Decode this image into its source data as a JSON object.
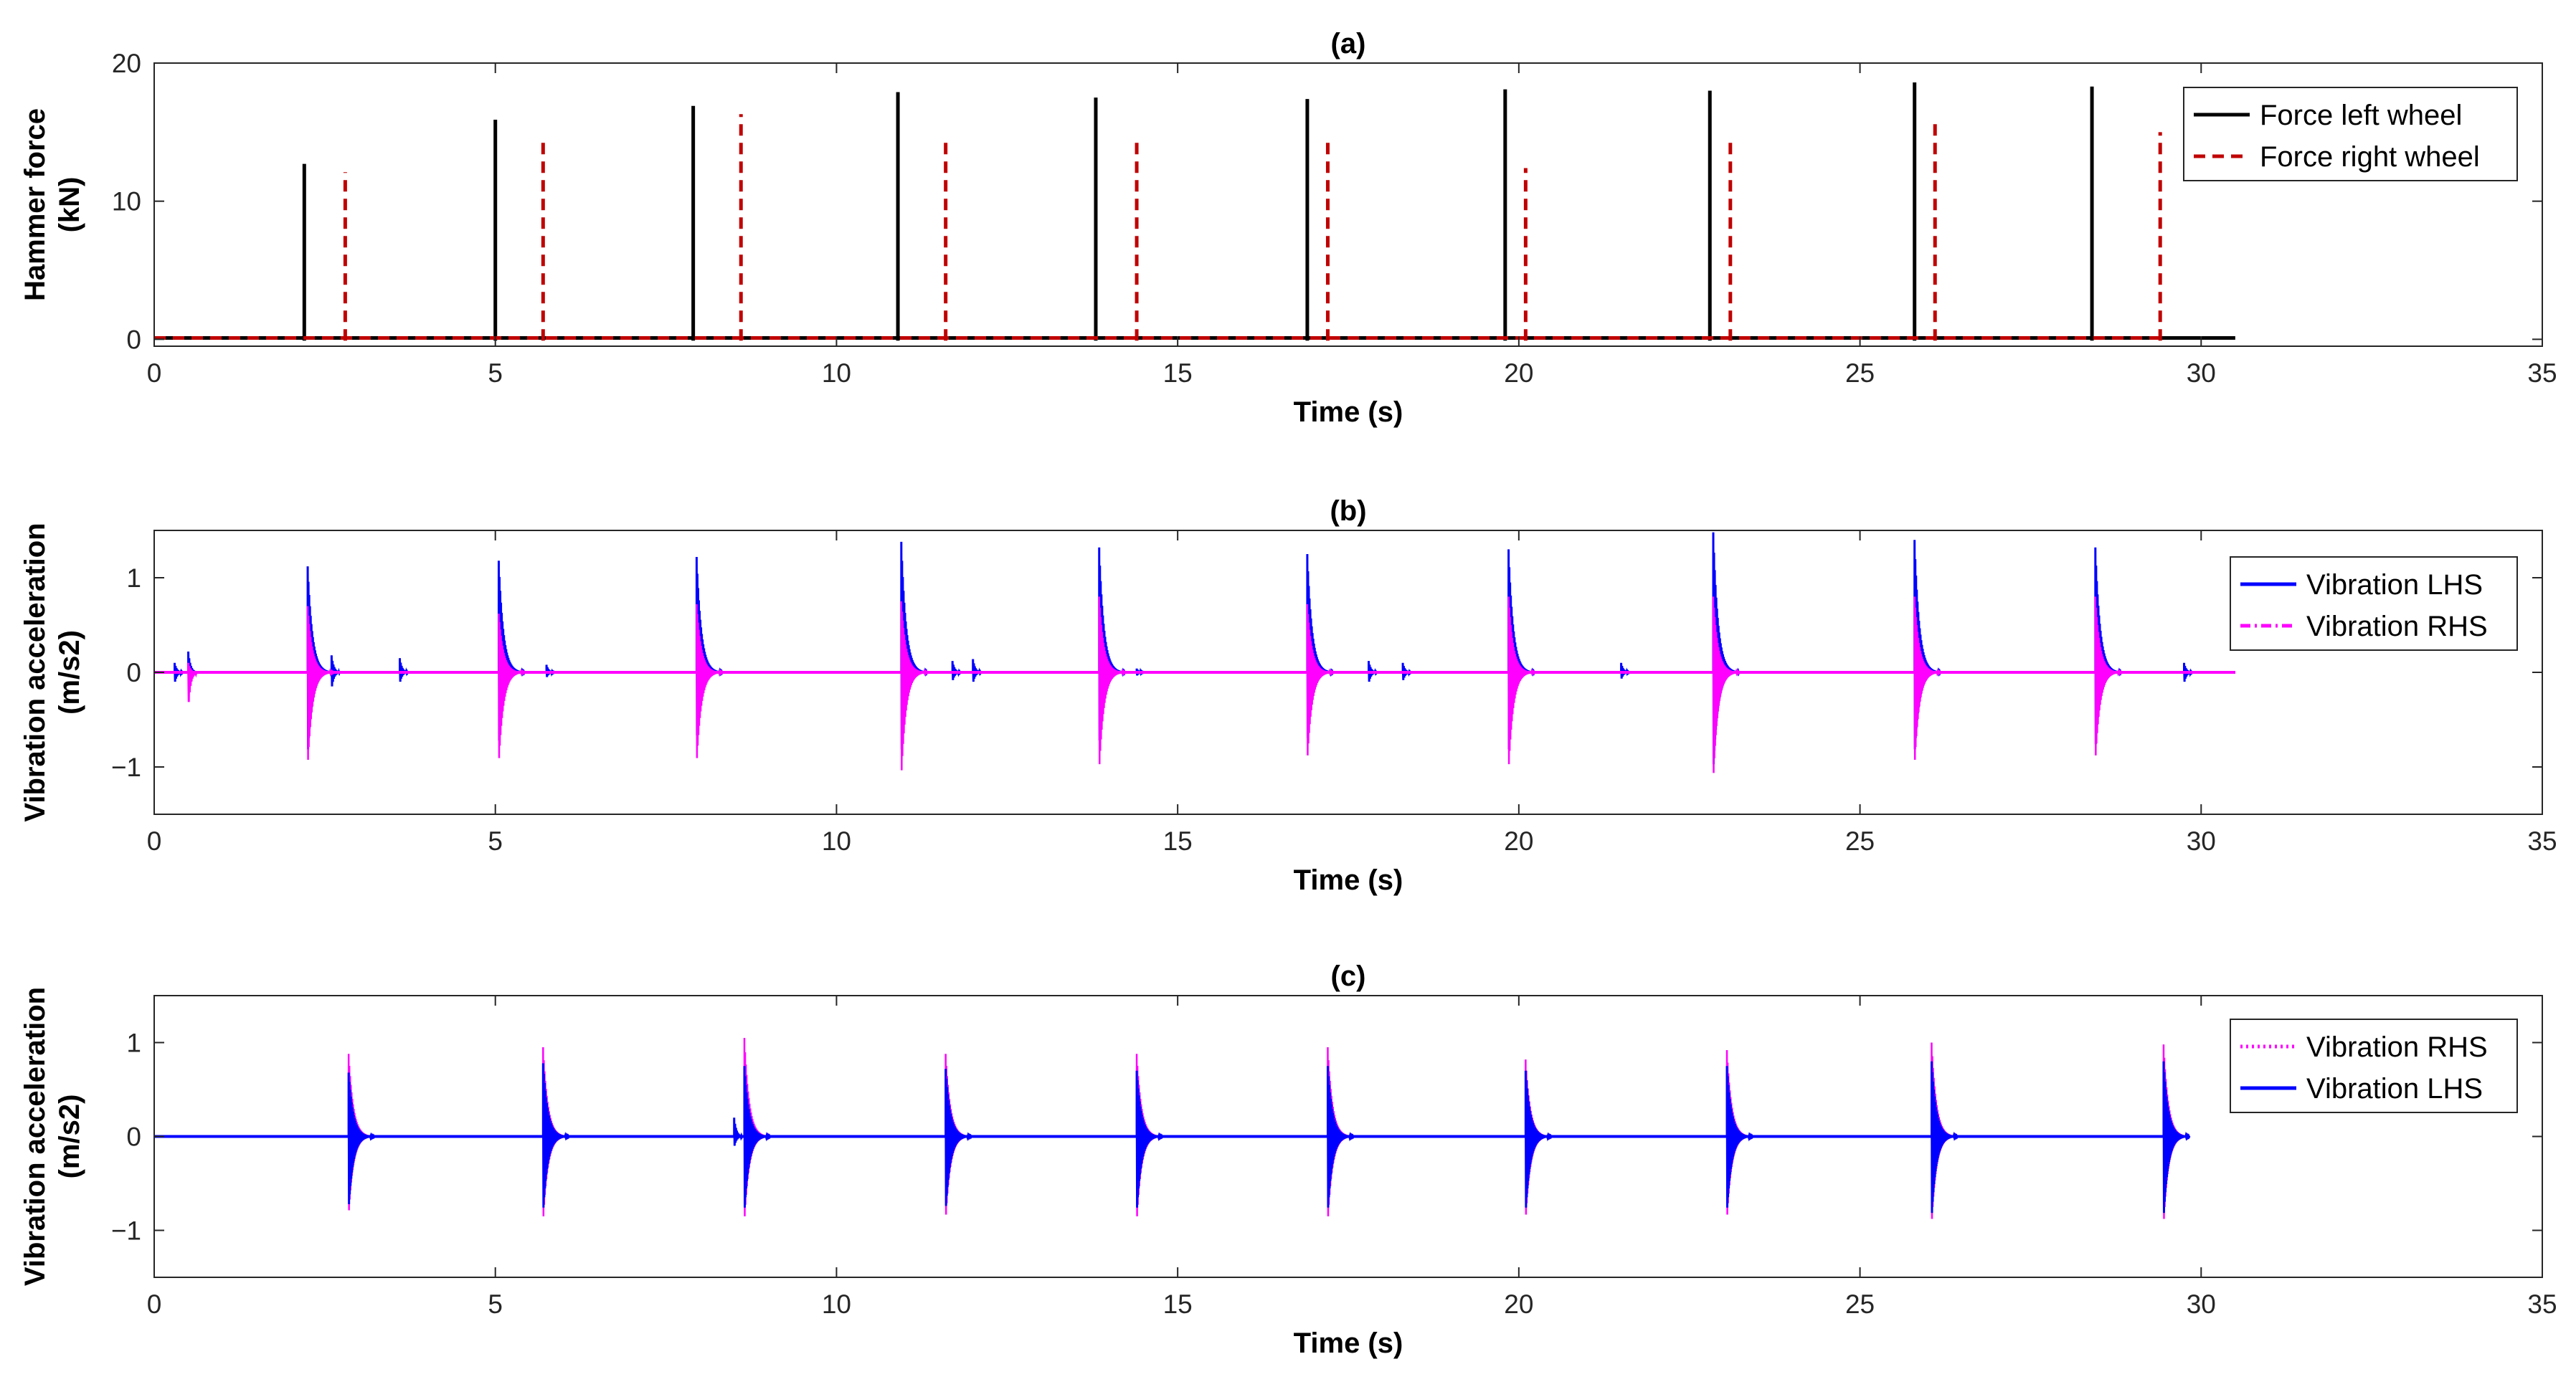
{
  "chart_data": [
    {
      "type": "line",
      "title": "(a)",
      "xlabel": "Time (s)",
      "ylabel": [
        "Hammer force",
        "(kN)"
      ],
      "xlim": [
        0,
        35
      ],
      "ylim": [
        -0.5,
        20
      ],
      "xticks": [
        0,
        5,
        10,
        15,
        20,
        25,
        30,
        35
      ],
      "yticks": [
        0,
        10,
        20
      ],
      "xtick_labels": [
        "0",
        "5",
        "10",
        "15",
        "20",
        "25",
        "30",
        "35"
      ],
      "ytick_labels": [
        "0",
        "10",
        "20"
      ],
      "legend_position": "top-right",
      "series": [
        {
          "name": "Force left wheel",
          "color": "#000000",
          "style": "solid",
          "baseline": 0.1,
          "x_end": 30.5,
          "spikes": [
            [
              2.2,
              12.7
            ],
            [
              5.0,
              15.9
            ],
            [
              7.9,
              16.9
            ],
            [
              10.9,
              17.9
            ],
            [
              13.8,
              17.5
            ],
            [
              16.9,
              17.4
            ],
            [
              19.8,
              18.1
            ],
            [
              22.8,
              18.0
            ],
            [
              25.8,
              18.6
            ],
            [
              28.4,
              18.3
            ]
          ]
        },
        {
          "name": "Force right wheel",
          "color": "#c00000",
          "style": "dashed",
          "baseline": 0.1,
          "x_end": 29.4,
          "spikes": [
            [
              2.8,
              12.1
            ],
            [
              5.7,
              14.6
            ],
            [
              8.6,
              16.3
            ],
            [
              11.6,
              14.7
            ],
            [
              14.4,
              14.6
            ],
            [
              17.2,
              14.4
            ],
            [
              20.1,
              12.4
            ],
            [
              23.1,
              14.5
            ],
            [
              26.1,
              16.0
            ],
            [
              29.4,
              15.0
            ]
          ]
        }
      ]
    },
    {
      "type": "line",
      "title": "(b)",
      "xlabel": "Time (s)",
      "ylabel": [
        "Vibration acceleration",
        "(m/s2)"
      ],
      "xlim": [
        0,
        35
      ],
      "ylim": [
        -1.5,
        1.5
      ],
      "xticks": [
        0,
        5,
        10,
        15,
        20,
        25,
        30,
        35
      ],
      "yticks": [
        -1,
        0,
        1
      ],
      "xtick_labels": [
        "0",
        "5",
        "10",
        "15",
        "20",
        "25",
        "30",
        "35"
      ],
      "ytick_labels": [
        "−1",
        "0",
        "1"
      ],
      "legend_position": "top-right",
      "series": [
        {
          "name": "Vibration LHS",
          "color": "#0000ff",
          "style": "solid",
          "x_end": 30.5,
          "bursts": [
            [
              2.25,
              1.12,
              -0.88
            ],
            [
              5.05,
              1.18,
              -0.78
            ],
            [
              7.95,
              1.22,
              -0.72
            ],
            [
              10.95,
              1.38,
              -0.88
            ],
            [
              13.85,
              1.32,
              -0.78
            ],
            [
              16.9,
              1.25,
              -0.75
            ],
            [
              19.85,
              1.3,
              -0.88
            ],
            [
              22.85,
              1.48,
              -1.05
            ],
            [
              25.8,
              1.4,
              -0.88
            ],
            [
              28.45,
              1.32,
              -0.82
            ]
          ],
          "small_bursts": [
            [
              0.3,
              0.1,
              -0.12
            ],
            [
              0.5,
              0.22,
              -0.22
            ],
            [
              2.6,
              0.18,
              -0.18
            ],
            [
              3.6,
              0.15,
              -0.12
            ],
            [
              5.75,
              0.08,
              -0.06
            ],
            [
              11.7,
              0.12,
              -0.1
            ],
            [
              12.0,
              0.14,
              -0.12
            ],
            [
              14.4,
              0.04,
              -0.04
            ],
            [
              17.8,
              0.12,
              -0.12
            ],
            [
              18.3,
              0.1,
              -0.1
            ],
            [
              21.5,
              0.1,
              -0.08
            ],
            [
              29.75,
              0.1,
              -0.12
            ]
          ]
        },
        {
          "name": "Vibration RHS",
          "color": "#ff00ff",
          "style": "dashdot",
          "x_end": 30.5,
          "bursts": [
            [
              2.25,
              0.7,
              -1.0
            ],
            [
              5.05,
              0.62,
              -0.98
            ],
            [
              7.95,
              0.72,
              -0.98
            ],
            [
              10.95,
              0.75,
              -1.12
            ],
            [
              13.85,
              0.8,
              -1.05
            ],
            [
              16.9,
              0.72,
              -0.95
            ],
            [
              19.85,
              0.8,
              -1.05
            ],
            [
              22.85,
              0.8,
              -1.15
            ],
            [
              25.8,
              0.8,
              -1.0
            ],
            [
              28.45,
              0.8,
              -0.95
            ]
          ],
          "small_bursts": [
            [
              0.5,
              0.1,
              -0.38
            ]
          ]
        }
      ]
    },
    {
      "type": "line",
      "title": "(c)",
      "xlabel": "Time (s)",
      "ylabel": [
        "Vibration acceleration",
        "(m/s2)"
      ],
      "xlim": [
        0,
        35
      ],
      "ylim": [
        -1.5,
        1.5
      ],
      "xticks": [
        0,
        5,
        10,
        15,
        20,
        25,
        30,
        35
      ],
      "yticks": [
        -1,
        0,
        1
      ],
      "xtick_labels": [
        "0",
        "5",
        "10",
        "15",
        "20",
        "25",
        "30",
        "35"
      ],
      "ytick_labels": [
        "−1",
        "0",
        "1"
      ],
      "legend_position": "top-right",
      "series": [
        {
          "name": "Vibration RHS",
          "color": "#ff00ff",
          "style": "dotted",
          "x_end": 29.45,
          "bursts": [
            [
              2.85,
              0.88,
              -0.85
            ],
            [
              5.7,
              0.95,
              -0.92
            ],
            [
              8.65,
              1.05,
              -0.92
            ],
            [
              11.6,
              0.88,
              -0.9
            ],
            [
              14.4,
              0.88,
              -0.92
            ],
            [
              17.2,
              0.95,
              -0.92
            ],
            [
              20.1,
              0.82,
              -0.9
            ],
            [
              23.05,
              0.92,
              -0.9
            ],
            [
              26.05,
              1.0,
              -0.95
            ],
            [
              29.45,
              0.98,
              -0.95
            ]
          ],
          "small_bursts": []
        },
        {
          "name": "Vibration LHS",
          "color": "#0000ff",
          "style": "solid",
          "x_end": 29.45,
          "bursts": [
            [
              2.85,
              0.68,
              -0.78
            ],
            [
              5.7,
              0.78,
              -0.82
            ],
            [
              8.65,
              0.75,
              -0.82
            ],
            [
              11.6,
              0.72,
              -0.8
            ],
            [
              14.4,
              0.7,
              -0.82
            ],
            [
              17.2,
              0.75,
              -0.82
            ],
            [
              20.1,
              0.7,
              -0.82
            ],
            [
              23.05,
              0.75,
              -0.82
            ],
            [
              26.05,
              0.8,
              -0.88
            ],
            [
              29.45,
              0.8,
              -0.88
            ]
          ],
          "small_bursts": [
            [
              8.5,
              0.2,
              -0.12
            ]
          ]
        }
      ]
    }
  ]
}
